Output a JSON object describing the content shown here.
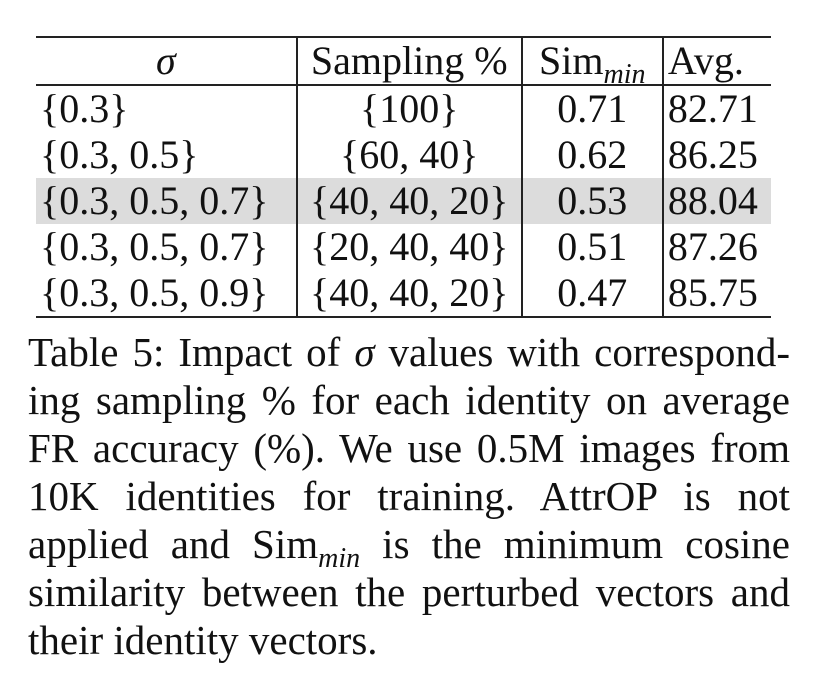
{
  "table": {
    "headers": {
      "sigma": "σ",
      "sampling": "Sampling %",
      "sim_base": "Sim",
      "sim_sub": "min",
      "avg": "Avg."
    },
    "rows": [
      {
        "sigma": "{0.3}",
        "sampling": "{100}",
        "sim": "0.71",
        "avg": "82.71"
      },
      {
        "sigma": "{0.3, 0.5}",
        "sampling": "{60, 40}",
        "sim": "0.62",
        "avg": "86.25"
      },
      {
        "sigma": "{0.3, 0.5, 0.7}",
        "sampling": "{40, 40, 20}",
        "sim": "0.53",
        "avg": "88.04"
      },
      {
        "sigma": "{0.3, 0.5, 0.7}",
        "sampling": "{20, 40, 40}",
        "sim": "0.51",
        "avg": "87.26"
      },
      {
        "sigma": "{0.3, 0.5, 0.9}",
        "sampling": "{40, 40, 20}",
        "sim": "0.47",
        "avg": "85.75"
      }
    ]
  },
  "caption": {
    "part1": "Table 5: Impact of ",
    "sigma": "σ",
    "part2": " values with correspond-ing sampling % for each identity on average FR accuracy (%). We use 0.5M images from 10K identities for training.  AttrOP is not applied and ",
    "sim_base": "Sim",
    "sim_sub": "min",
    "part3": " is the minimum cosine similarity between the perturbed vectors and their identity vectors."
  }
}
